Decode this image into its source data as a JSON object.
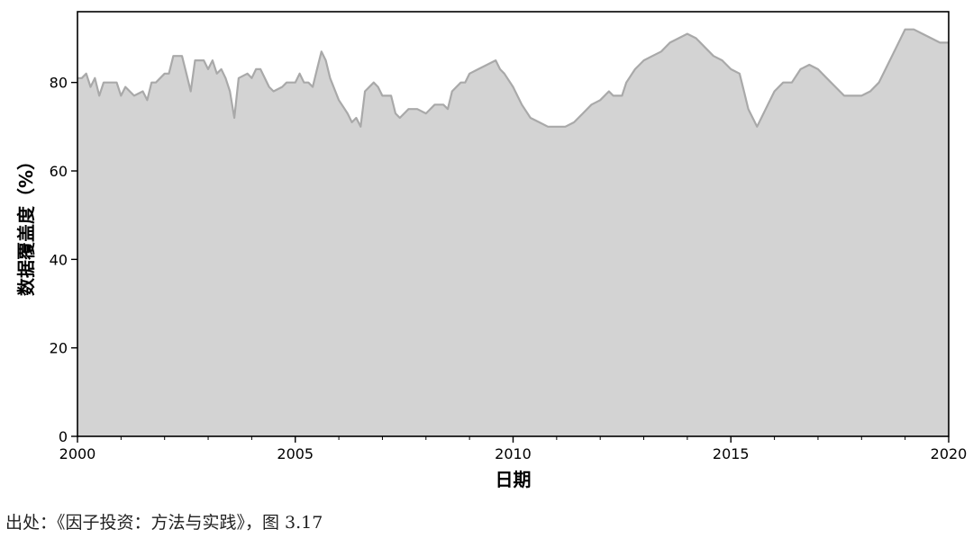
{
  "chart_data": {
    "type": "area",
    "title": "",
    "xlabel": "日期",
    "ylabel": "数据覆盖度（%）",
    "xlim": [
      2000,
      2020
    ],
    "ylim": [
      0,
      96
    ],
    "x_ticks": [
      2000,
      2005,
      2010,
      2015,
      2020
    ],
    "y_ticks": [
      0,
      20,
      40,
      60,
      80
    ],
    "grid": false,
    "fill_color": "#d3d3d3",
    "line_color": "#a9a9a9",
    "series": [
      {
        "x": [
          2000.0,
          2000.1,
          2000.2,
          2000.3,
          2000.4,
          2000.5,
          2000.6,
          2000.8,
          2000.9,
          2001.0,
          2001.1,
          2001.2,
          2001.3,
          2001.5,
          2001.6,
          2001.7,
          2001.8,
          2002.0,
          2002.1,
          2002.2,
          2002.4,
          2002.5,
          2002.6,
          2002.7,
          2002.9,
          2003.0,
          2003.1,
          2003.2,
          2003.3,
          2003.4,
          2003.5,
          2003.6,
          2003.7,
          2003.9,
          2004.0,
          2004.1,
          2004.2,
          2004.4,
          2004.5,
          2004.7,
          2004.8,
          2005.0,
          2005.1,
          2005.2,
          2005.3,
          2005.4,
          2005.5,
          2005.6,
          2005.7,
          2005.8,
          2006.0,
          2006.2,
          2006.3,
          2006.4,
          2006.5,
          2006.6,
          2006.8,
          2006.9,
          2007.0,
          2007.2,
          2007.3,
          2007.4,
          2007.6,
          2007.8,
          2008.0,
          2008.2,
          2008.4,
          2008.5,
          2008.6,
          2008.8,
          2008.9,
          2009.0,
          2009.2,
          2009.4,
          2009.6,
          2009.7,
          2009.8,
          2010.0,
          2010.2,
          2010.4,
          2010.6,
          2010.8,
          2011.0,
          2011.2,
          2011.4,
          2011.6,
          2011.8,
          2012.0,
          2012.2,
          2012.3,
          2012.5,
          2012.6,
          2012.8,
          2013.0,
          2013.2,
          2013.4,
          2013.6,
          2013.8,
          2014.0,
          2014.2,
          2014.4,
          2014.6,
          2014.8,
          2015.0,
          2015.2,
          2015.3,
          2015.4,
          2015.6,
          2015.8,
          2016.0,
          2016.2,
          2016.4,
          2016.6,
          2016.8,
          2017.0,
          2017.2,
          2017.4,
          2017.6,
          2017.8,
          2018.0,
          2018.2,
          2018.4,
          2018.6,
          2018.8,
          2019.0,
          2019.2,
          2019.4,
          2019.6,
          2019.8,
          2020.0
        ],
        "y": [
          81,
          81,
          82,
          79,
          81,
          77,
          80,
          80,
          80,
          77,
          79,
          78,
          77,
          78,
          76,
          80,
          80,
          82,
          82,
          86,
          86,
          82,
          78,
          85,
          85,
          83,
          85,
          82,
          83,
          81,
          78,
          72,
          81,
          82,
          81,
          83,
          83,
          79,
          78,
          79,
          80,
          80,
          82,
          80,
          80,
          79,
          83,
          87,
          85,
          81,
          76,
          73,
          71,
          72,
          70,
          78,
          80,
          79,
          77,
          77,
          73,
          72,
          74,
          74,
          73,
          75,
          75,
          74,
          78,
          80,
          80,
          82,
          83,
          84,
          85,
          83,
          82,
          79,
          75,
          72,
          71,
          70,
          70,
          70,
          71,
          73,
          75,
          76,
          78,
          77,
          77,
          80,
          83,
          85,
          86,
          87,
          89,
          90,
          91,
          90,
          88,
          86,
          85,
          83,
          82,
          78,
          74,
          70,
          74,
          78,
          80,
          80,
          83,
          84,
          83,
          81,
          79,
          77,
          77,
          77,
          78,
          80,
          84,
          88,
          92,
          92,
          91,
          90,
          89,
          89
        ]
      }
    ]
  },
  "source_note": "出处：《因子投资：方法与实践》，图 3.17"
}
